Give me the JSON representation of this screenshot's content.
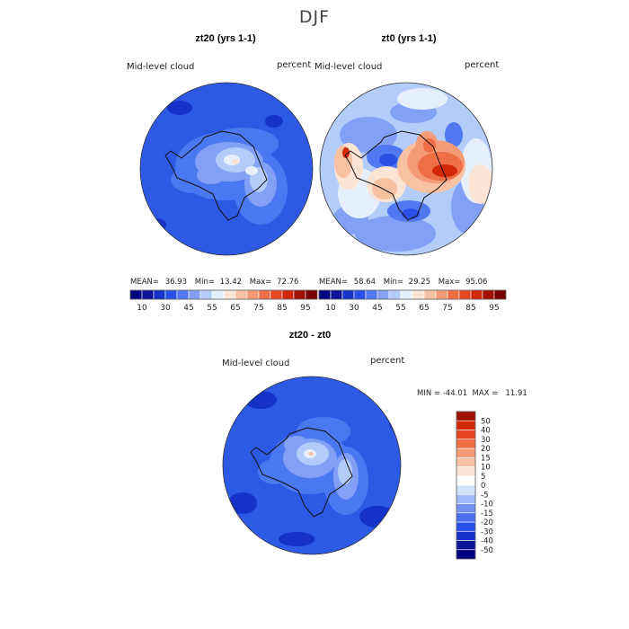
{
  "figure": {
    "title": "DJF",
    "panels": [
      {
        "key": "p1",
        "title": "zt20 (yrs 1-1)",
        "variable": "Mid-level cloud",
        "units": "percent",
        "stats": {
          "mean_label": "MEAN=",
          "mean": "36.93",
          "min_label": "Min=",
          "min": "13.42",
          "max_label": "Max=",
          "max": "72.76"
        }
      },
      {
        "key": "p2",
        "title": "zt0 (yrs 1-1)",
        "variable": "Mid-level cloud",
        "units": "percent",
        "stats": {
          "mean_label": "MEAN=",
          "mean": "58.64",
          "min_label": "Min=",
          "min": "29.25",
          "max_label": "Max=",
          "max": "95.06"
        }
      },
      {
        "key": "p3",
        "title": "zt20 - zt0",
        "variable": "Mid-level cloud",
        "units": "percent",
        "minmax_text": "MIN = -44.01  MAX =   11.91"
      }
    ]
  },
  "colorbar_abs": {
    "colors": [
      "#00007f",
      "#0a1496",
      "#1432c8",
      "#2850e6",
      "#5078f0",
      "#82a0f5",
      "#b4ccfa",
      "#e6f0fc",
      "#fbe4d4",
      "#f8c2a2",
      "#f49a76",
      "#ee6e46",
      "#e64520",
      "#d22808",
      "#a01000",
      "#780000"
    ],
    "labels": [
      "10",
      "30",
      "45",
      "55",
      "65",
      "75",
      "85",
      "95"
    ]
  },
  "colorbar_diff": {
    "colors": [
      "#00007f",
      "#0a1496",
      "#1432c8",
      "#2850e6",
      "#4a70ee",
      "#7090f2",
      "#a0bcf8",
      "#d0e2fc",
      "#ffffff",
      "#fbe4d4",
      "#f8c2a2",
      "#f49a76",
      "#ee6e46",
      "#e64520",
      "#d22808",
      "#a01000"
    ],
    "labels": [
      "-50",
      "-40",
      "-30",
      "-20",
      "-15",
      "-10",
      "-5",
      "0",
      "5",
      "10",
      "15",
      "20",
      "30",
      "40",
      "50"
    ]
  },
  "maps": {
    "p1": {
      "background": "#2d5ae4",
      "regions": [
        {
          "color": "#4a78f0",
          "blobs": [
            [
              250,
              185,
              55,
              38
            ],
            [
              290,
              210,
              30,
              40
            ],
            [
              215,
              200,
              25,
              15
            ],
            [
              270,
              160,
              40,
              18
            ]
          ]
        },
        {
          "color": "#82a0f5",
          "blobs": [
            [
              255,
              180,
              38,
              22
            ],
            [
              290,
              205,
              18,
              25
            ],
            [
              235,
              195,
              16,
              10
            ]
          ]
        },
        {
          "color": "#b4ccfa",
          "blobs": [
            [
              262,
              178,
              22,
              14
            ],
            [
              288,
              200,
              10,
              14
            ]
          ]
        },
        {
          "color": "#e6f0fc",
          "blobs": [
            [
              258,
              178,
              9,
              6
            ],
            [
              280,
              190,
              7,
              5
            ]
          ]
        },
        {
          "color": "#fbe4d4",
          "blobs": [
            [
              262,
              180,
              4,
              3
            ]
          ]
        },
        {
          "color": "#1432c8",
          "blobs": [
            [
              200,
              120,
              14,
              8
            ],
            [
              330,
              260,
              12,
              8
            ],
            [
              175,
              250,
              10,
              7
            ],
            [
              305,
              135,
              10,
              7
            ],
            [
              210,
              290,
              12,
              8
            ]
          ]
        }
      ]
    },
    "p2": {
      "background": "#b4ccfa",
      "regions": [
        {
          "color": "#82a0f5",
          "blobs": [
            [
              410,
              150,
              32,
              20
            ],
            [
              440,
              260,
              45,
              20
            ],
            [
              520,
              230,
              18,
              30
            ],
            [
              390,
              245,
              20,
              16
            ],
            [
              460,
              125,
              26,
              12
            ]
          ]
        },
        {
          "color": "#5078f0",
          "blobs": [
            [
              430,
              175,
              22,
              14
            ],
            [
              455,
              235,
              24,
              12
            ],
            [
              505,
              150,
              10,
              14
            ]
          ]
        },
        {
          "color": "#2850e6",
          "blobs": [
            [
              432,
              178,
              10,
              7
            ],
            [
              457,
              238,
              10,
              6
            ]
          ]
        },
        {
          "color": "#e6f0fc",
          "blobs": [
            [
              400,
              215,
              24,
              28
            ],
            [
              530,
              190,
              18,
              36
            ],
            [
              470,
              110,
              28,
              12
            ]
          ]
        },
        {
          "color": "#fbe4d4",
          "blobs": [
            [
              388,
              185,
              16,
              26
            ],
            [
              430,
              205,
              22,
              20
            ],
            [
              535,
              205,
              14,
              22
            ]
          ]
        },
        {
          "color": "#f8c2a2",
          "blobs": [
            [
              480,
              185,
              38,
              30
            ],
            [
              382,
              180,
              10,
              18
            ],
            [
              428,
              210,
              14,
              12
            ]
          ]
        },
        {
          "color": "#f49a76",
          "blobs": [
            [
              485,
              180,
              32,
              24
            ],
            [
              475,
              160,
              12,
              14
            ]
          ]
        },
        {
          "color": "#ee6e46",
          "blobs": [
            [
              490,
              185,
              25,
              16
            ],
            [
              478,
              162,
              7,
              8
            ]
          ]
        },
        {
          "color": "#d22808",
          "blobs": [
            [
              495,
              190,
              14,
              7
            ],
            [
              385,
              170,
              4,
              6
            ]
          ]
        }
      ]
    },
    "p3": {
      "background": "#2d5ae4",
      "regions": [
        {
          "color": "#1432c8",
          "blobs": [
            [
              290,
              445,
              18,
              10
            ],
            [
              420,
              575,
              20,
              12
            ],
            [
              270,
              560,
              16,
              12
            ],
            [
              445,
              470,
              12,
              12
            ],
            [
              330,
              600,
              20,
              8
            ]
          ]
        },
        {
          "color": "#4a78f0",
          "blobs": [
            [
              345,
              515,
              45,
              35
            ],
            [
              385,
              535,
              25,
              38
            ],
            [
              305,
              525,
              18,
              14
            ],
            [
              360,
              480,
              30,
              16
            ]
          ]
        },
        {
          "color": "#82a0f5",
          "blobs": [
            [
              345,
              510,
              30,
              22
            ],
            [
              385,
              530,
              14,
              26
            ],
            [
              330,
              495,
              14,
              10
            ]
          ]
        },
        {
          "color": "#b4ccfa",
          "blobs": [
            [
              348,
              505,
              18,
              13
            ],
            [
              384,
              525,
              8,
              14
            ]
          ]
        },
        {
          "color": "#e6f0fc",
          "blobs": [
            [
              345,
              505,
              7,
              5
            ]
          ]
        },
        {
          "color": "#f8c2a2",
          "blobs": [
            [
              346,
              505,
              3,
              2
            ]
          ]
        }
      ]
    }
  }
}
